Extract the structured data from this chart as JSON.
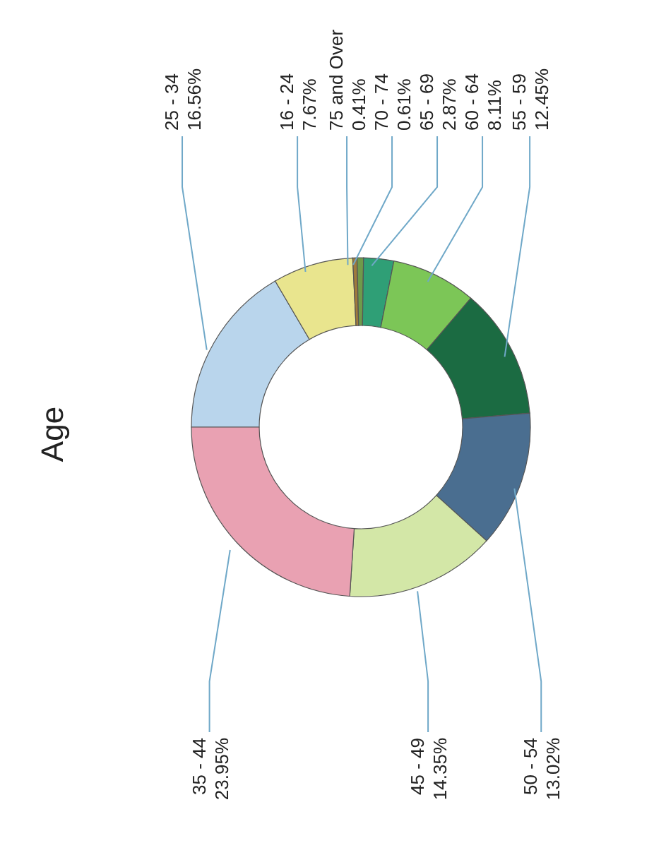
{
  "chart_data": {
    "type": "donut",
    "title": "Age",
    "categories": [
      "25 - 34",
      "16 - 24",
      "75 and Over",
      "70 - 74",
      "65 - 69",
      "60 - 64",
      "55 - 59",
      "50 - 54",
      "45 - 49",
      "35 - 44"
    ],
    "values": [
      16.56,
      7.67,
      0.41,
      0.61,
      2.87,
      8.11,
      12.45,
      13.02,
      14.35,
      23.95
    ],
    "colors": [
      "#b9d5ec",
      "#e9e58e",
      "#a07a3c",
      "#6f9a4a",
      "#2f9f76",
      "#7cc657",
      "#1b6b42",
      "#4a6e90",
      "#d3e7a7",
      "#e9a1b2"
    ],
    "value_labels": [
      "16.56%",
      "7.67%",
      "0.41%",
      "0.61%",
      "2.87%",
      "8.11%",
      "12.45%",
      "13.02%",
      "14.35%",
      "23.95%"
    ]
  }
}
